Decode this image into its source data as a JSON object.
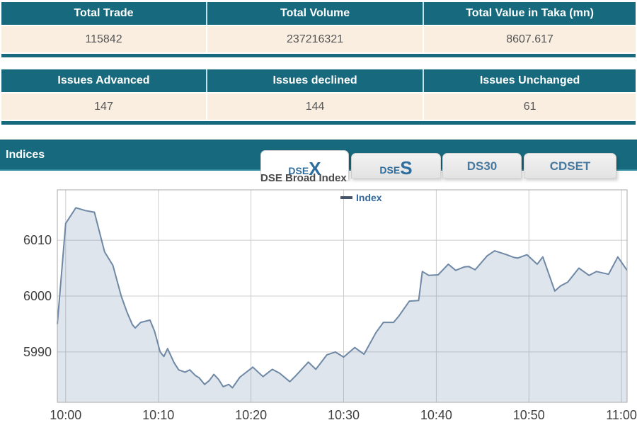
{
  "colors": {
    "teal_header": "#17697d",
    "row_background": "#faeee1",
    "value_text": "#555555",
    "header_text": "#ffffff",
    "tab_text": "#2e6e9e"
  },
  "summary_tables": [
    {
      "headers": [
        "Total Trade",
        "Total Volume",
        "Total Value in Taka (mn)"
      ],
      "values": [
        "115842",
        "237216321",
        "8607.617"
      ]
    },
    {
      "headers": [
        "Issues Advanced",
        "Issues declined",
        "Issues Unchanged"
      ],
      "values": [
        "147",
        "144",
        "61"
      ]
    }
  ],
  "indices_section": {
    "label": "Indices"
  },
  "tabs": [
    {
      "id": "dsex",
      "prefix": "DSE",
      "suffix": "X",
      "label": "DSEX",
      "active": true
    },
    {
      "id": "dses",
      "prefix": "DSE",
      "suffix": "S",
      "label": "DSES",
      "active": false
    },
    {
      "id": "ds30",
      "label": "DS30",
      "active": false
    },
    {
      "id": "cdset",
      "label": "CDSET",
      "active": false
    }
  ],
  "chart_data": {
    "type": "area",
    "title": "DSE Broad Index",
    "legend": [
      {
        "label": "Index"
      }
    ],
    "x_ticks": [
      "10:00",
      "10:10",
      "10:20",
      "10:30",
      "10:40",
      "10:50",
      "11:00"
    ],
    "y_ticks": [
      5990,
      6000,
      6010
    ],
    "ylim": [
      5981,
      6019
    ],
    "xlim_minutes": [
      -0.9,
      60.6
    ],
    "xlabel": "",
    "ylabel": "",
    "grid": true,
    "legend_position": "top-center",
    "series": [
      {
        "name": "Index",
        "points_format": "[minutes_after_10:00, index_value]",
        "points": [
          [
            -0.9,
            5995.0
          ],
          [
            0,
            6013.0
          ],
          [
            1.1,
            6015.8
          ],
          [
            2.1,
            6015.3
          ],
          [
            3.1,
            6015.0
          ],
          [
            4.2,
            6007.9
          ],
          [
            5.1,
            6005.5
          ],
          [
            6.0,
            6000.0
          ],
          [
            6.6,
            5997.2
          ],
          [
            7.2,
            5994.9
          ],
          [
            7.5,
            5994.3
          ],
          [
            8.1,
            5995.3
          ],
          [
            9.1,
            5995.7
          ],
          [
            9.6,
            5993.7
          ],
          [
            10.2,
            5990.0
          ],
          [
            10.6,
            5989.2
          ],
          [
            11.0,
            5990.6
          ],
          [
            11.7,
            5988.1
          ],
          [
            12.2,
            5986.8
          ],
          [
            12.9,
            5986.4
          ],
          [
            13.4,
            5986.8
          ],
          [
            14.0,
            5985.8
          ],
          [
            14.4,
            5985.4
          ],
          [
            15.0,
            5984.2
          ],
          [
            15.5,
            5984.9
          ],
          [
            16.0,
            5986.0
          ],
          [
            16.5,
            5985.1
          ],
          [
            17.0,
            5983.8
          ],
          [
            17.6,
            5984.2
          ],
          [
            18.0,
            5983.6
          ],
          [
            18.8,
            5985.5
          ],
          [
            20.2,
            5987.3
          ],
          [
            21.3,
            5985.6
          ],
          [
            22.3,
            5986.9
          ],
          [
            23.1,
            5986.2
          ],
          [
            24.2,
            5984.7
          ],
          [
            24.8,
            5985.7
          ],
          [
            26.2,
            5988.2
          ],
          [
            27.0,
            5986.9
          ],
          [
            28.2,
            5989.5
          ],
          [
            29.1,
            5990.0
          ],
          [
            30.0,
            5989.1
          ],
          [
            31.2,
            5990.8
          ],
          [
            32.2,
            5989.6
          ],
          [
            33.5,
            5993.5
          ],
          [
            34.3,
            5995.3
          ],
          [
            35.4,
            5995.3
          ],
          [
            36.0,
            5996.5
          ],
          [
            37.1,
            5999.1
          ],
          [
            38.1,
            5999.2
          ],
          [
            38.5,
            6004.4
          ],
          [
            39.2,
            6003.7
          ],
          [
            40.2,
            6003.8
          ],
          [
            41.3,
            6005.7
          ],
          [
            42.1,
            6004.6
          ],
          [
            43.0,
            6005.2
          ],
          [
            43.5,
            6005.3
          ],
          [
            44.2,
            6004.7
          ],
          [
            45.5,
            6007.2
          ],
          [
            46.3,
            6008.1
          ],
          [
            47.6,
            6007.4
          ],
          [
            48.4,
            6006.9
          ],
          [
            48.8,
            6006.8
          ],
          [
            49.8,
            6007.4
          ],
          [
            50.9,
            6005.7
          ],
          [
            51.5,
            6007.0
          ],
          [
            52.8,
            6000.9
          ],
          [
            53.4,
            6001.8
          ],
          [
            54.2,
            6002.5
          ],
          [
            55.4,
            6005.0
          ],
          [
            56.5,
            6003.7
          ],
          [
            57.3,
            6004.4
          ],
          [
            58.6,
            6003.9
          ],
          [
            59.6,
            6007.0
          ],
          [
            60.6,
            6004.6
          ]
        ]
      }
    ],
    "colors": {
      "line": "#6e88a5",
      "fill": "rgba(110,135,170,0.22)",
      "grid": "#cccccc",
      "border": "#a8a8a8",
      "axis_label": "#404040",
      "legend_text": "#33679b",
      "legend_marker": "#44546a"
    }
  }
}
